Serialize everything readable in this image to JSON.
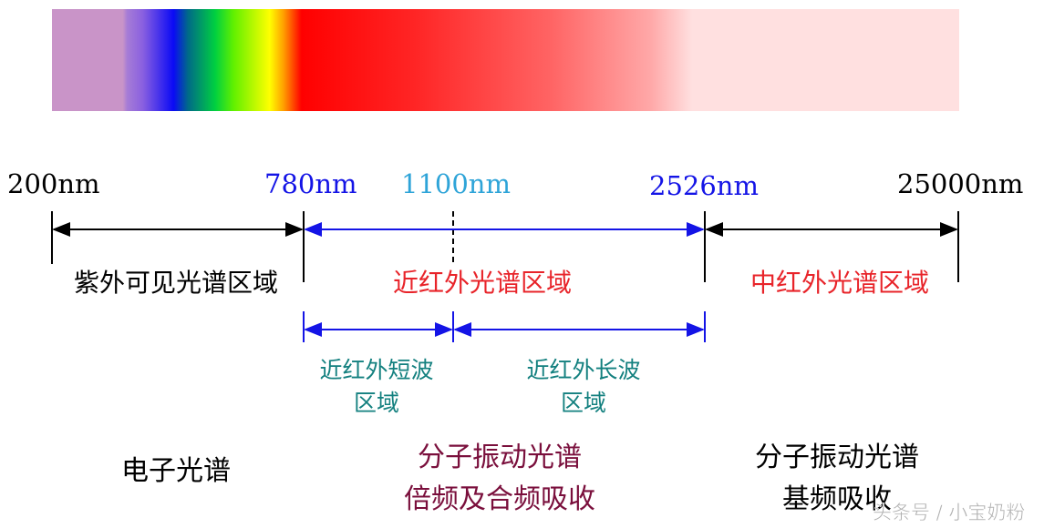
{
  "colors": {
    "black": "#000000",
    "blue": "#1414e6",
    "light_blue": "#2ea4d8",
    "red": "#e8242a",
    "teal": "#13807f",
    "maroon": "#7a0f3c",
    "watermark": "#b0b0b0"
  },
  "wavelengths": [
    "200nm",
    "780nm",
    "1100nm",
    "2526nm",
    "25000nm"
  ],
  "regions": [
    "紫外可见光谱区域",
    "近红外光谱区域",
    "中红外光谱区域"
  ],
  "subregions": [
    {
      "line1": "近红外短波",
      "line2": "区域"
    },
    {
      "line1": "近红外长波",
      "line2": "区域"
    }
  ],
  "spectra": [
    {
      "line1": "电子光谱"
    },
    {
      "line1": "分子振动光谱",
      "line2": "倍频及合频吸收"
    },
    {
      "line1": "分子振动光谱",
      "line2": "基频吸收"
    }
  ],
  "watermark": "头条号 / 小宝奶粉"
}
